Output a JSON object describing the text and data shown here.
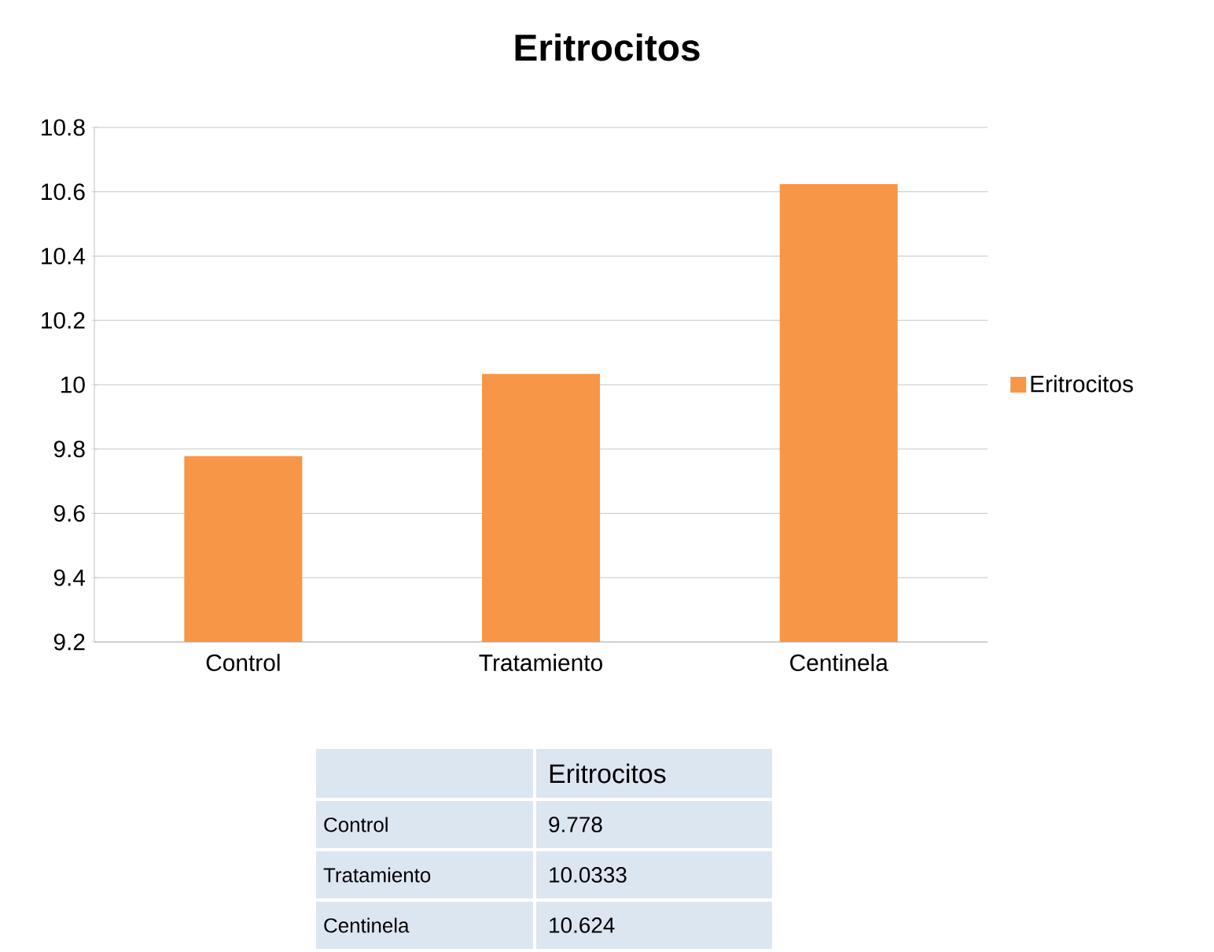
{
  "chart_data": {
    "type": "bar",
    "title": "Eritrocitos",
    "categories": [
      "Control",
      "Tratamiento",
      "Centinela"
    ],
    "series": [
      {
        "name": "Eritrocitos",
        "color": "#f79646",
        "values": [
          9.778,
          10.0333,
          10.624
        ]
      }
    ],
    "annotations": [
      "9.778",
      "10.0333",
      "10.624"
    ],
    "ylim": [
      9.2,
      10.8
    ],
    "yticks": [
      9.2,
      9.4,
      9.6,
      9.8,
      10,
      10.2,
      10.4,
      10.6,
      10.8
    ],
    "grid": "y",
    "legend": "right"
  }
}
